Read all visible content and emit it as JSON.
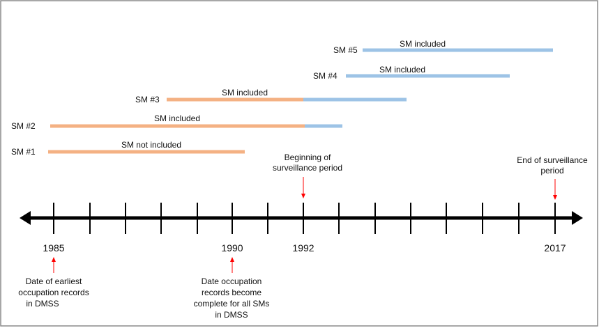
{
  "colors": {
    "pre_period": "#f4b183",
    "in_period": "#9dc3e6",
    "annotation_arrow": "#ff0000",
    "axis": "#000000"
  },
  "bars": [
    {
      "label": "SM #1",
      "status": "SM not included"
    },
    {
      "label": "SM #2",
      "status": "SM included"
    },
    {
      "label": "SM #3",
      "status": "SM included"
    },
    {
      "label": "SM #4",
      "status": "SM included"
    },
    {
      "label": "SM #5",
      "status": "SM included"
    }
  ],
  "timeline": {
    "year_labels": [
      "1985",
      "1990",
      "1992",
      "2017"
    ]
  },
  "annotations": {
    "beginning": [
      "Beginning of",
      "surveillance period"
    ],
    "end": [
      "End of surveillance",
      "period"
    ],
    "earliest": [
      "Date of earliest",
      "occupation records",
      "in DMSS"
    ],
    "complete": [
      "Date occupation",
      "records become",
      "complete for all SMs",
      "in DMSS"
    ]
  }
}
